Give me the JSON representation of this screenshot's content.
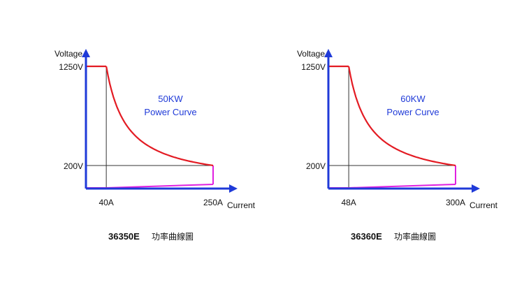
{
  "chart_data": [
    {
      "type": "line",
      "title": "50KW\nPower Curve",
      "caption_model": "36350E",
      "caption_text": "功率曲線圖",
      "xlabel": "Current",
      "ylabel": "Voltage",
      "x_ticks": [
        {
          "value": 40,
          "label": "40A"
        },
        {
          "value": 250,
          "label": "250A"
        }
      ],
      "y_ticks": [
        {
          "value": 1250,
          "label": "1250V"
        },
        {
          "value": 200,
          "label": "200V"
        }
      ],
      "power_kw": 50,
      "series": [
        {
          "color": "#e31b23",
          "x": [
            0,
            40,
            60,
            80,
            100,
            125,
            150,
            175,
            200,
            225,
            250,
            250
          ],
          "y": [
            1250,
            1250,
            833,
            625,
            500,
            400,
            333,
            286,
            250,
            222,
            200,
            0
          ]
        },
        {
          "color": "#e020e0",
          "x": [
            0,
            250
          ],
          "y": [
            0,
            0
          ]
        }
      ],
      "grid_lines": [
        {
          "orientation": "vertical",
          "value": 40
        },
        {
          "orientation": "horizontal",
          "value": 200
        }
      ],
      "colors": {
        "axis": "#1f3ad8",
        "curve": "#e31b23",
        "bottom": "#e020e0",
        "title": "#1f3ad8"
      }
    },
    {
      "type": "line",
      "title": "60KW\nPower Curve",
      "caption_model": "36360E",
      "caption_text": "功率曲線圖",
      "xlabel": "Current",
      "ylabel": "Voltage",
      "x_ticks": [
        {
          "value": 48,
          "label": "48A"
        },
        {
          "value": 300,
          "label": "300A"
        }
      ],
      "y_ticks": [
        {
          "value": 1250,
          "label": "1250V"
        },
        {
          "value": 200,
          "label": "200V"
        }
      ],
      "power_kw": 60,
      "series": [
        {
          "color": "#e31b23",
          "x": [
            0,
            48,
            72,
            96,
            120,
            150,
            180,
            210,
            240,
            270,
            300,
            300
          ],
          "y": [
            1250,
            1250,
            833,
            625,
            500,
            400,
            333,
            286,
            250,
            222,
            200,
            0
          ]
        },
        {
          "color": "#e020e0",
          "x": [
            0,
            300
          ],
          "y": [
            0,
            0
          ]
        }
      ],
      "grid_lines": [
        {
          "orientation": "vertical",
          "value": 48
        },
        {
          "orientation": "horizontal",
          "value": 200
        }
      ],
      "colors": {
        "axis": "#1f3ad8",
        "curve": "#e31b23",
        "bottom": "#e020e0",
        "title": "#1f3ad8"
      }
    }
  ]
}
